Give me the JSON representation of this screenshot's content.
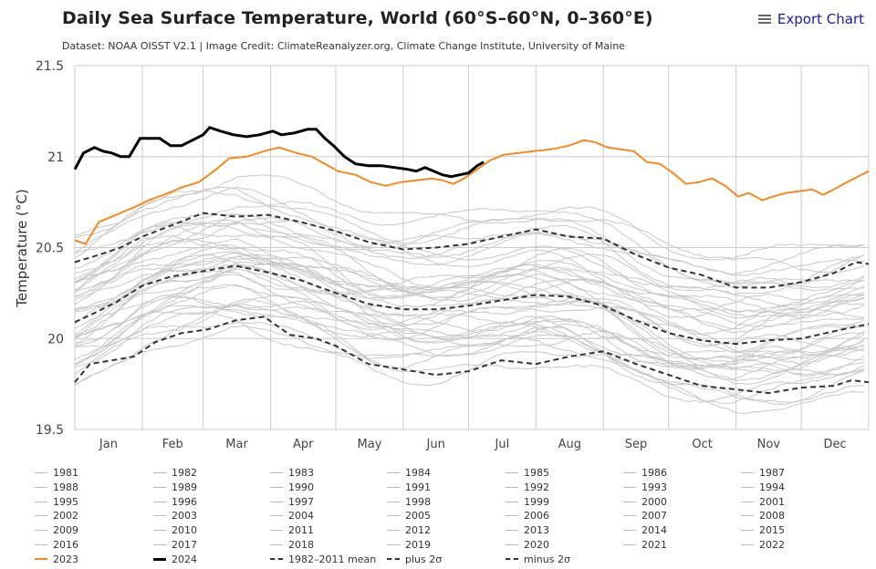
{
  "header": {
    "title": "Daily Sea Surface Temperature, World (60°S–60°N, 0–360°E)",
    "subtitle": "Dataset: NOAA OISST V2.1 | Image Credit: ClimateReanalyzer.org, Climate Change Institute, University of Maine",
    "export_label": "Export Chart",
    "export_icon": "menu-icon"
  },
  "colors": {
    "historical": "#c8c8c8",
    "y2023": "#f58a1f",
    "y2024": "#000000",
    "mean": "#333333",
    "grid": "#cccccc"
  },
  "chart_data": {
    "type": "line",
    "title": "Daily Sea Surface Temperature, World (60°S–60°N, 0–360°E)",
    "xlabel": "",
    "ylabel": "Temperature (°C)",
    "ylim": [
      19.5,
      21.5
    ],
    "yticks": [
      "21.5",
      "21",
      "20.5",
      "20",
      "19.5"
    ],
    "ytick_values": [
      21.5,
      21,
      20.5,
      20,
      19.5
    ],
    "xlim_day": [
      1,
      366
    ],
    "month_labels": [
      "Jan",
      "Feb",
      "Mar",
      "Apr",
      "May",
      "Jun",
      "Jul",
      "Aug",
      "Sep",
      "Oct",
      "Nov",
      "Dec"
    ],
    "month_start_days": [
      1,
      32,
      60,
      91,
      121,
      152,
      182,
      213,
      244,
      274,
      305,
      335
    ],
    "grid": true,
    "legend_position": "bottom",
    "series": [
      {
        "name": "2023",
        "style": "solid-orange",
        "points": [
          [
            1,
            20.54
          ],
          [
            6,
            20.52
          ],
          [
            12,
            20.64
          ],
          [
            20,
            20.68
          ],
          [
            28,
            20.72
          ],
          [
            35,
            20.76
          ],
          [
            42,
            20.79
          ],
          [
            50,
            20.83
          ],
          [
            58,
            20.86
          ],
          [
            65,
            20.92
          ],
          [
            72,
            20.99
          ],
          [
            80,
            21.0
          ],
          [
            88,
            21.03
          ],
          [
            95,
            21.05
          ],
          [
            103,
            21.02
          ],
          [
            110,
            21.0
          ],
          [
            116,
            20.96
          ],
          [
            122,
            20.92
          ],
          [
            130,
            20.9
          ],
          [
            137,
            20.86
          ],
          [
            144,
            20.84
          ],
          [
            151,
            20.86
          ],
          [
            158,
            20.87
          ],
          [
            165,
            20.88
          ],
          [
            170,
            20.87
          ],
          [
            175,
            20.85
          ],
          [
            180,
            20.88
          ],
          [
            186,
            20.93
          ],
          [
            192,
            20.98
          ],
          [
            198,
            21.01
          ],
          [
            205,
            21.02
          ],
          [
            212,
            21.03
          ],
          [
            220,
            21.04
          ],
          [
            228,
            21.06
          ],
          [
            235,
            21.09
          ],
          [
            240,
            21.08
          ],
          [
            246,
            21.05
          ],
          [
            252,
            21.04
          ],
          [
            258,
            21.03
          ],
          [
            264,
            20.97
          ],
          [
            270,
            20.96
          ],
          [
            276,
            20.91
          ],
          [
            282,
            20.85
          ],
          [
            288,
            20.86
          ],
          [
            294,
            20.88
          ],
          [
            300,
            20.84
          ],
          [
            306,
            20.78
          ],
          [
            311,
            20.8
          ],
          [
            317,
            20.76
          ],
          [
            322,
            20.78
          ],
          [
            328,
            20.8
          ],
          [
            334,
            20.81
          ],
          [
            340,
            20.82
          ],
          [
            345,
            20.79
          ],
          [
            350,
            20.82
          ],
          [
            356,
            20.86
          ],
          [
            361,
            20.89
          ],
          [
            366,
            20.92
          ]
        ]
      },
      {
        "name": "2024",
        "style": "solid-black-thick",
        "points": [
          [
            1,
            20.93
          ],
          [
            5,
            21.02
          ],
          [
            10,
            21.05
          ],
          [
            14,
            21.03
          ],
          [
            18,
            21.02
          ],
          [
            22,
            21.0
          ],
          [
            26,
            21.0
          ],
          [
            31,
            21.1
          ],
          [
            35,
            21.1
          ],
          [
            40,
            21.1
          ],
          [
            45,
            21.06
          ],
          [
            50,
            21.06
          ],
          [
            55,
            21.09
          ],
          [
            60,
            21.12
          ],
          [
            63,
            21.16
          ],
          [
            68,
            21.14
          ],
          [
            74,
            21.12
          ],
          [
            80,
            21.11
          ],
          [
            86,
            21.12
          ],
          [
            92,
            21.14
          ],
          [
            96,
            21.12
          ],
          [
            102,
            21.13
          ],
          [
            108,
            21.15
          ],
          [
            112,
            21.15
          ],
          [
            116,
            21.1
          ],
          [
            120,
            21.06
          ],
          [
            125,
            21.0
          ],
          [
            130,
            20.96
          ],
          [
            136,
            20.95
          ],
          [
            142,
            20.95
          ],
          [
            148,
            20.94
          ],
          [
            154,
            20.93
          ],
          [
            158,
            20.92
          ],
          [
            162,
            20.94
          ],
          [
            166,
            20.92
          ],
          [
            170,
            20.9
          ],
          [
            174,
            20.89
          ],
          [
            178,
            20.9
          ],
          [
            182,
            20.91
          ],
          [
            186,
            20.95
          ],
          [
            189,
            20.97
          ]
        ]
      },
      {
        "name": "1982-2011 mean",
        "style": "dashed",
        "points": [
          [
            1,
            20.09
          ],
          [
            10,
            20.14
          ],
          [
            20,
            20.2
          ],
          [
            32,
            20.29
          ],
          [
            45,
            20.34
          ],
          [
            60,
            20.37
          ],
          [
            75,
            20.4
          ],
          [
            91,
            20.36
          ],
          [
            105,
            20.32
          ],
          [
            121,
            20.25
          ],
          [
            136,
            20.19
          ],
          [
            152,
            20.16
          ],
          [
            167,
            20.16
          ],
          [
            182,
            20.18
          ],
          [
            197,
            20.21
          ],
          [
            213,
            20.24
          ],
          [
            228,
            20.23
          ],
          [
            244,
            20.18
          ],
          [
            259,
            20.1
          ],
          [
            274,
            20.03
          ],
          [
            289,
            19.99
          ],
          [
            305,
            19.97
          ],
          [
            320,
            19.99
          ],
          [
            335,
            20.0
          ],
          [
            350,
            20.04
          ],
          [
            366,
            20.08
          ]
        ]
      },
      {
        "name": "plus 2σ",
        "style": "dashed",
        "points": [
          [
            1,
            20.42
          ],
          [
            12,
            20.46
          ],
          [
            22,
            20.5
          ],
          [
            32,
            20.56
          ],
          [
            45,
            20.62
          ],
          [
            60,
            20.69
          ],
          [
            75,
            20.67
          ],
          [
            90,
            20.68
          ],
          [
            105,
            20.64
          ],
          [
            121,
            20.59
          ],
          [
            136,
            20.53
          ],
          [
            152,
            20.49
          ],
          [
            167,
            20.5
          ],
          [
            182,
            20.52
          ],
          [
            197,
            20.56
          ],
          [
            213,
            20.6
          ],
          [
            228,
            20.56
          ],
          [
            244,
            20.55
          ],
          [
            259,
            20.46
          ],
          [
            274,
            20.39
          ],
          [
            289,
            20.35
          ],
          [
            305,
            20.28
          ],
          [
            320,
            20.28
          ],
          [
            335,
            20.31
          ],
          [
            350,
            20.36
          ],
          [
            360,
            20.42
          ],
          [
            366,
            20.41
          ]
        ]
      },
      {
        "name": "minus 2σ",
        "style": "dashed",
        "points": [
          [
            1,
            19.76
          ],
          [
            8,
            19.86
          ],
          [
            18,
            19.88
          ],
          [
            28,
            19.9
          ],
          [
            38,
            19.98
          ],
          [
            50,
            20.03
          ],
          [
            62,
            20.05
          ],
          [
            75,
            20.1
          ],
          [
            88,
            20.12
          ],
          [
            100,
            20.02
          ],
          [
            112,
            20.0
          ],
          [
            121,
            19.96
          ],
          [
            136,
            19.86
          ],
          [
            152,
            19.83
          ],
          [
            167,
            19.8
          ],
          [
            182,
            19.82
          ],
          [
            197,
            19.88
          ],
          [
            213,
            19.86
          ],
          [
            228,
            19.9
          ],
          [
            244,
            19.93
          ],
          [
            259,
            19.86
          ],
          [
            274,
            19.8
          ],
          [
            289,
            19.74
          ],
          [
            305,
            19.72
          ],
          [
            320,
            19.7
          ],
          [
            335,
            19.73
          ],
          [
            350,
            19.74
          ],
          [
            358,
            19.77
          ],
          [
            366,
            19.76
          ]
        ]
      }
    ],
    "historical_years": [
      1981,
      1982,
      1983,
      1984,
      1985,
      1986,
      1987,
      1988,
      1989,
      1990,
      1991,
      1992,
      1993,
      1994,
      1995,
      1996,
      1997,
      1998,
      1999,
      2000,
      2001,
      2002,
      2003,
      2004,
      2005,
      2006,
      2007,
      2008,
      2009,
      2010,
      2011,
      2012,
      2013,
      2014,
      2015,
      2016,
      2017,
      2018,
      2019,
      2020,
      2021,
      2022
    ],
    "historical_offsets": [
      -0.28,
      -0.2,
      -0.25,
      -0.3,
      -0.22,
      -0.18,
      -0.06,
      -0.14,
      -0.24,
      -0.12,
      -0.08,
      -0.26,
      -0.18,
      -0.1,
      -0.02,
      -0.12,
      0.08,
      0.14,
      -0.08,
      -0.06,
      0.02,
      0.1,
      0.12,
      0.08,
      0.16,
      0.12,
      0.06,
      0.0,
      0.14,
      0.2,
      0.06,
      0.16,
      0.2,
      0.28,
      0.38,
      0.44,
      0.38,
      0.32,
      0.42,
      0.38,
      0.3,
      0.32
    ]
  },
  "legend": {
    "rows": [
      [
        "1981",
        "1982",
        "1983",
        "1984",
        "1985",
        "1986",
        "1987"
      ],
      [
        "1988",
        "1989",
        "1990",
        "1991",
        "1992",
        "1993",
        "1994"
      ],
      [
        "1995",
        "1996",
        "1997",
        "1998",
        "1999",
        "2000",
        "2001"
      ],
      [
        "2002",
        "2003",
        "2004",
        "2005",
        "2006",
        "2007",
        "2008"
      ],
      [
        "2009",
        "2010",
        "2011",
        "2012",
        "2013",
        "2014",
        "2015"
      ],
      [
        "2016",
        "2017",
        "2018",
        "2019",
        "2020",
        "2021",
        "2022"
      ],
      [
        "2023",
        "2024",
        "1982–2011 mean",
        "plus 2σ",
        "minus 2σ"
      ]
    ]
  }
}
